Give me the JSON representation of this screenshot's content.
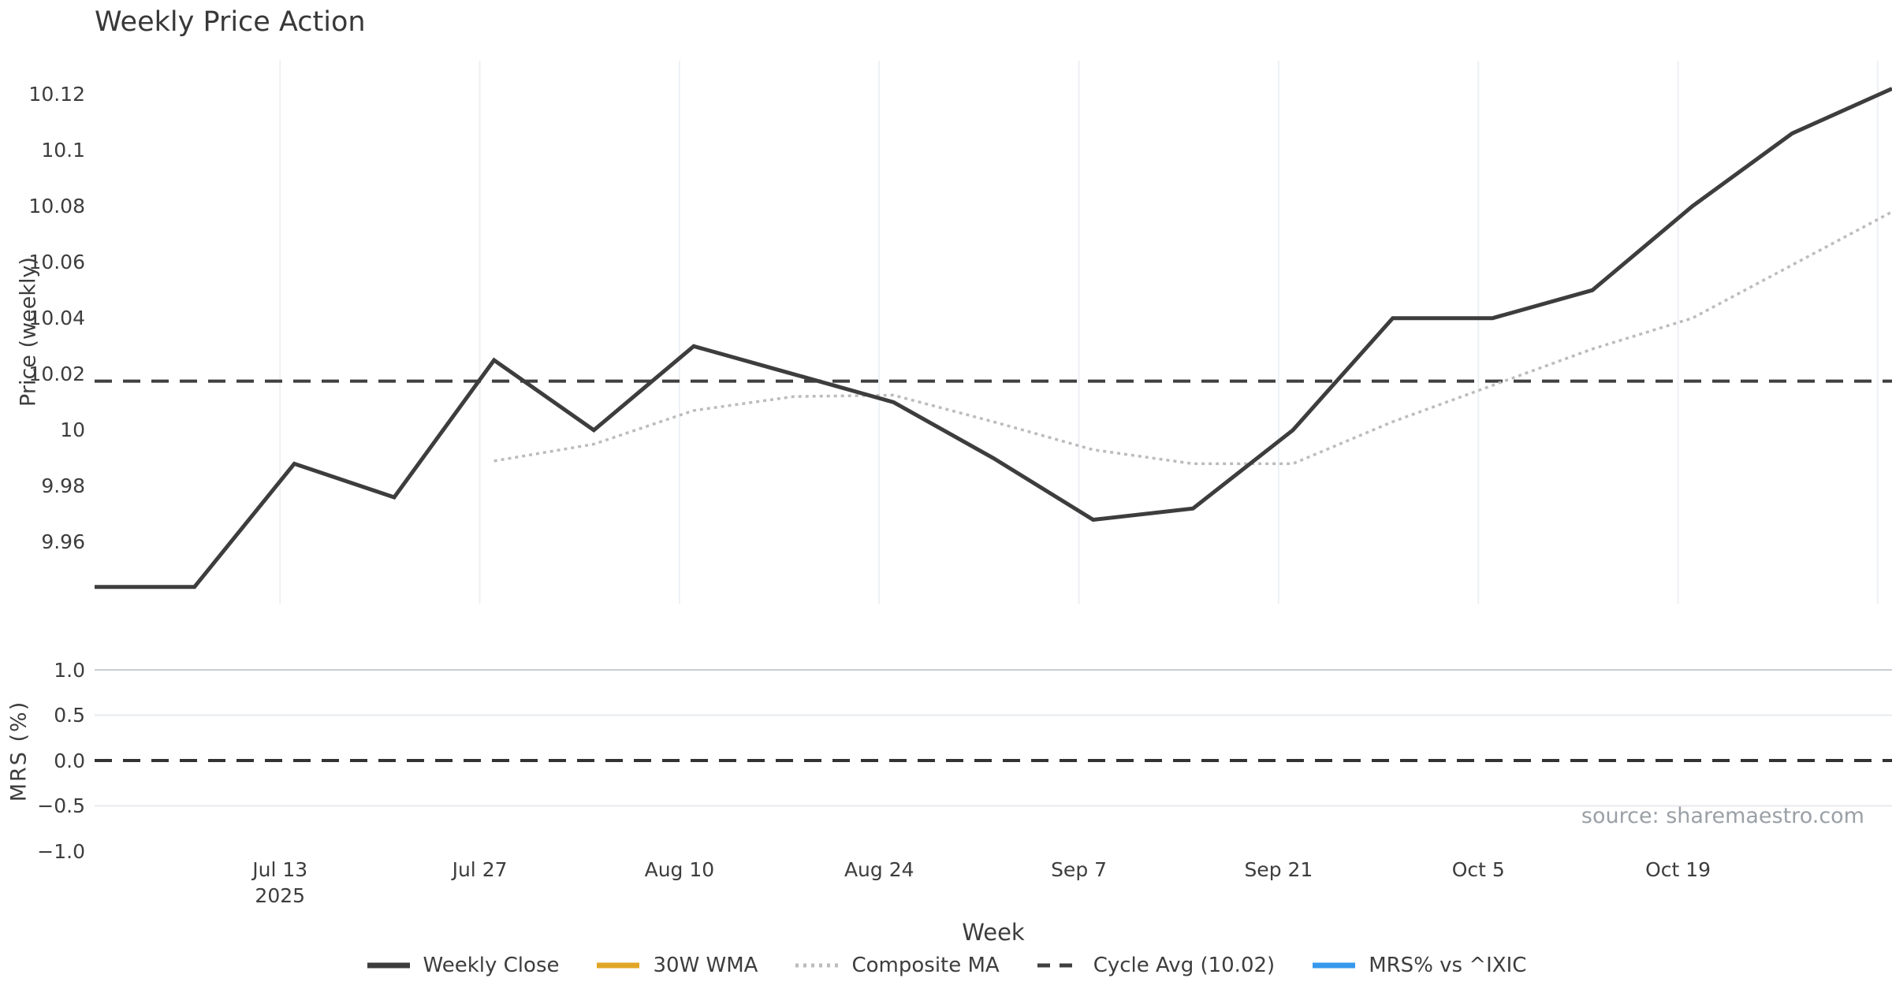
{
  "title": "Weekly Price Action",
  "source_note": "source: sharemaestro.com",
  "colors": {
    "weekly_close": "#3d3d3d",
    "wma_30w": "#e0a526",
    "composite_ma": "#bcbcbc",
    "cycle_avg": "#3f3f3f",
    "mrs_line": "#3598ec",
    "grid_vertical": "#edf0f4",
    "grid_horizontal": "#e7eaee",
    "grid_horizontal_emphasis": "#c9ced4",
    "text": "#3d3d3d",
    "muted_text": "#9aa0a6"
  },
  "legend": {
    "items": [
      {
        "label": "Weekly Close",
        "style": "solid",
        "color": "#3d3d3d"
      },
      {
        "label": "30W WMA",
        "style": "solid",
        "color": "#e0a526"
      },
      {
        "label": "Composite MA",
        "style": "dotted",
        "color": "#bcbcbc"
      },
      {
        "label": "Cycle Avg (10.02)",
        "style": "dashed",
        "color": "#3f3f3f"
      },
      {
        "label": "MRS% vs ^IXIC",
        "style": "solid",
        "color": "#3598ec"
      }
    ]
  },
  "chart_data": [
    {
      "panel": "price",
      "type": "line",
      "title": "Weekly Price Action",
      "xlabel": "Week",
      "ylabel": "Price (weekly)",
      "x_unit": "days since Jun 30 2025",
      "xlim": [
        0,
        126
      ],
      "ylim": [
        9.938,
        10.132
      ],
      "grid": "vertical-only",
      "x_days": [
        0,
        7,
        14,
        21,
        28,
        35,
        42,
        49,
        56,
        63,
        70,
        77,
        84,
        91,
        98,
        105,
        112,
        119,
        126
      ],
      "x_dates": [
        "Jun 30",
        "Jul 7",
        "Jul 14",
        "Jul 21",
        "Jul 28",
        "Aug 4",
        "Aug 11",
        "Aug 18",
        "Aug 25",
        "Sep 1",
        "Sep 8",
        "Sep 15",
        "Sep 22",
        "Sep 29",
        "Oct 6",
        "Oct 13",
        "Oct 20",
        "Oct 27",
        "Nov 3"
      ],
      "series": [
        {
          "name": "Weekly Close",
          "style": "solid",
          "color": "#3d3d3d",
          "visible": true,
          "values": [
            9.944,
            9.944,
            9.988,
            9.976,
            10.025,
            10.0,
            10.03,
            10.02,
            10.01,
            9.99,
            9.968,
            9.972,
            10.0,
            10.04,
            10.04,
            10.05,
            10.08,
            10.106,
            10.122
          ]
        },
        {
          "name": "Composite MA",
          "style": "dotted",
          "color": "#bcbcbc",
          "visible": true,
          "values": [
            null,
            null,
            null,
            null,
            9.989,
            9.995,
            10.007,
            10.012,
            10.0125,
            10.003,
            9.993,
            9.988,
            9.988,
            10.003,
            10.016,
            10.029,
            10.04,
            10.059,
            10.078
          ]
        },
        {
          "name": "30W WMA",
          "style": "solid",
          "color": "#e0a526",
          "visible": false,
          "values": []
        }
      ],
      "reference_lines": [
        {
          "name": "Cycle Avg (10.02)",
          "value": 10.0175,
          "style": "dashed",
          "color": "#3f3f3f"
        }
      ],
      "yticks": [
        {
          "label": "10.12",
          "value": 10.12
        },
        {
          "label": "10.1",
          "value": 10.1
        },
        {
          "label": "10.08",
          "value": 10.08
        },
        {
          "label": "10.06",
          "value": 10.06
        },
        {
          "label": "10.04",
          "value": 10.04
        },
        {
          "label": "10.02",
          "value": 10.02
        },
        {
          "label": "10",
          "value": 10.0
        },
        {
          "label": "9.98",
          "value": 9.98
        },
        {
          "label": "9.96",
          "value": 9.96
        }
      ],
      "xticks": [
        {
          "label": "Jul 13",
          "sub": "2025",
          "day": 13
        },
        {
          "label": "Jul 27",
          "day": 27
        },
        {
          "label": "Aug 10",
          "day": 41
        },
        {
          "label": "Aug 24",
          "day": 55
        },
        {
          "label": "Sep 7",
          "day": 69
        },
        {
          "label": "Sep 21",
          "day": 83
        },
        {
          "label": "Oct 5",
          "day": 97
        },
        {
          "label": "Oct 19",
          "day": 111
        }
      ],
      "vertical_gridline_days": [
        13,
        27,
        41,
        55,
        69,
        83,
        97,
        111,
        125
      ],
      "legend_position": "below-figure"
    },
    {
      "panel": "mrs",
      "type": "line",
      "ylabel": "MRS (%)",
      "xlim": [
        0,
        126
      ],
      "ylim": [
        -1.0,
        1.209
      ],
      "grid": "horizontal-only",
      "series": [
        {
          "name": "MRS% vs ^IXIC",
          "style": "solid",
          "color": "#3598ec",
          "visible": false,
          "values": []
        }
      ],
      "reference_lines": [
        {
          "name": "zero",
          "value": 0.0,
          "style": "dashed",
          "color": "#333333"
        }
      ],
      "yticks": [
        {
          "label": "1.0",
          "value": 1.0
        },
        {
          "label": "0.5",
          "value": 0.5
        },
        {
          "label": "0.0",
          "value": 0.0
        },
        {
          "label": "−0.5",
          "value": -0.5
        },
        {
          "label": "−1.0",
          "value": -1.0
        }
      ],
      "horizontal_gridlines": [
        {
          "value": 1.0,
          "emphasis": true
        },
        {
          "value": 0.5,
          "emphasis": false
        },
        {
          "value": -0.5,
          "emphasis": false
        }
      ]
    }
  ]
}
